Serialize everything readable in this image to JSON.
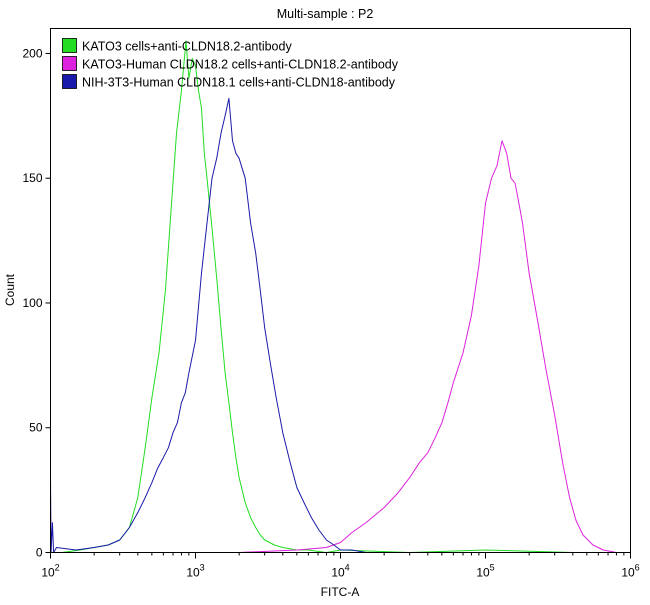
{
  "chart_data": {
    "type": "line",
    "title": "Multi-sample : P2",
    "xlabel": "FITC-A",
    "ylabel": "Count",
    "xscale": "log",
    "xlim": [
      100,
      1000000
    ],
    "ylim": [
      0,
      210
    ],
    "grid": false,
    "legend_position": "top-left",
    "x_ticks": [
      {
        "value": 100,
        "base": "10",
        "exp": "2"
      },
      {
        "value": 1000,
        "base": "10",
        "exp": "3"
      },
      {
        "value": 10000,
        "base": "10",
        "exp": "4"
      },
      {
        "value": 100000,
        "base": "10",
        "exp": "5"
      },
      {
        "value": 1000000,
        "base": "10",
        "exp": "6"
      }
    ],
    "y_ticks": [
      {
        "value": 0,
        "label": "0"
      },
      {
        "value": 50,
        "label": "50"
      },
      {
        "value": 100,
        "label": "100"
      },
      {
        "value": 150,
        "label": "150"
      },
      {
        "value": 200,
        "label": "200"
      }
    ],
    "series": [
      {
        "name": "KATO3 cells+anti-CLDN18.2-antibody",
        "color": "#22dd22",
        "x": [
          120,
          160,
          200,
          250,
          300,
          350,
          400,
          450,
          500,
          560,
          620,
          680,
          740,
          800,
          860,
          900,
          950,
          1000,
          1050,
          1100,
          1150,
          1200,
          1300,
          1400,
          1500,
          1600,
          1700,
          1800,
          1900,
          2000,
          2200,
          2400,
          2600,
          2800,
          3000,
          3500,
          4000,
          5000,
          6000,
          8000,
          10000,
          30000,
          100000,
          400000
        ],
        "y": [
          0,
          1,
          2,
          3,
          5,
          10,
          22,
          42,
          62,
          80,
          105,
          138,
          168,
          185,
          205,
          190,
          198,
          195,
          185,
          178,
          160,
          150,
          130,
          110,
          90,
          72,
          60,
          48,
          38,
          30,
          20,
          14,
          10,
          7,
          5,
          3,
          2,
          1,
          1,
          0,
          1,
          0,
          1,
          0
        ]
      },
      {
        "name": "KATO3-Human CLDN18.2 cells+anti-CLDN18.2-antibody",
        "color": "#dd22dd",
        "x": [
          2000,
          5000,
          8000,
          10000,
          12000,
          15000,
          20000,
          25000,
          30000,
          35000,
          40000,
          45000,
          50000,
          55000,
          60000,
          70000,
          80000,
          90000,
          100000,
          110000,
          120000,
          130000,
          140000,
          150000,
          160000,
          170000,
          180000,
          200000,
          230000,
          260000,
          300000,
          340000,
          380000,
          420000,
          470000,
          550000,
          650000,
          800000
        ],
        "y": [
          0,
          1,
          2,
          4,
          8,
          12,
          18,
          24,
          30,
          36,
          40,
          46,
          52,
          60,
          68,
          80,
          95,
          115,
          140,
          150,
          155,
          165,
          160,
          150,
          148,
          140,
          132,
          112,
          92,
          74,
          55,
          36,
          22,
          13,
          7,
          3,
          1,
          0
        ]
      },
      {
        "name": "NIH-3T3-Human CLDN18.1 cells+anti-CLDN18-antibody",
        "color": "#1a1aaa",
        "x": [
          100,
          101,
          103,
          105,
          110,
          150,
          200,
          250,
          300,
          350,
          400,
          450,
          500,
          550,
          600,
          650,
          700,
          750,
          800,
          850,
          900,
          1000,
          1100,
          1200,
          1300,
          1400,
          1500,
          1600,
          1700,
          1800,
          1900,
          2000,
          2200,
          2400,
          2600,
          2800,
          3000,
          3300,
          3600,
          4000,
          4500,
          5000,
          5600,
          6300,
          7100,
          8000,
          9000,
          10000,
          12000,
          15000
        ],
        "y": [
          30,
          0,
          12,
          0,
          2,
          1,
          2,
          3,
          5,
          10,
          16,
          22,
          28,
          34,
          38,
          42,
          48,
          52,
          60,
          64,
          72,
          85,
          112,
          132,
          150,
          158,
          168,
          175,
          182,
          165,
          160,
          158,
          150,
          132,
          120,
          105,
          90,
          75,
          62,
          48,
          36,
          26,
          20,
          14,
          9,
          5,
          3,
          1,
          1,
          0
        ]
      }
    ]
  }
}
